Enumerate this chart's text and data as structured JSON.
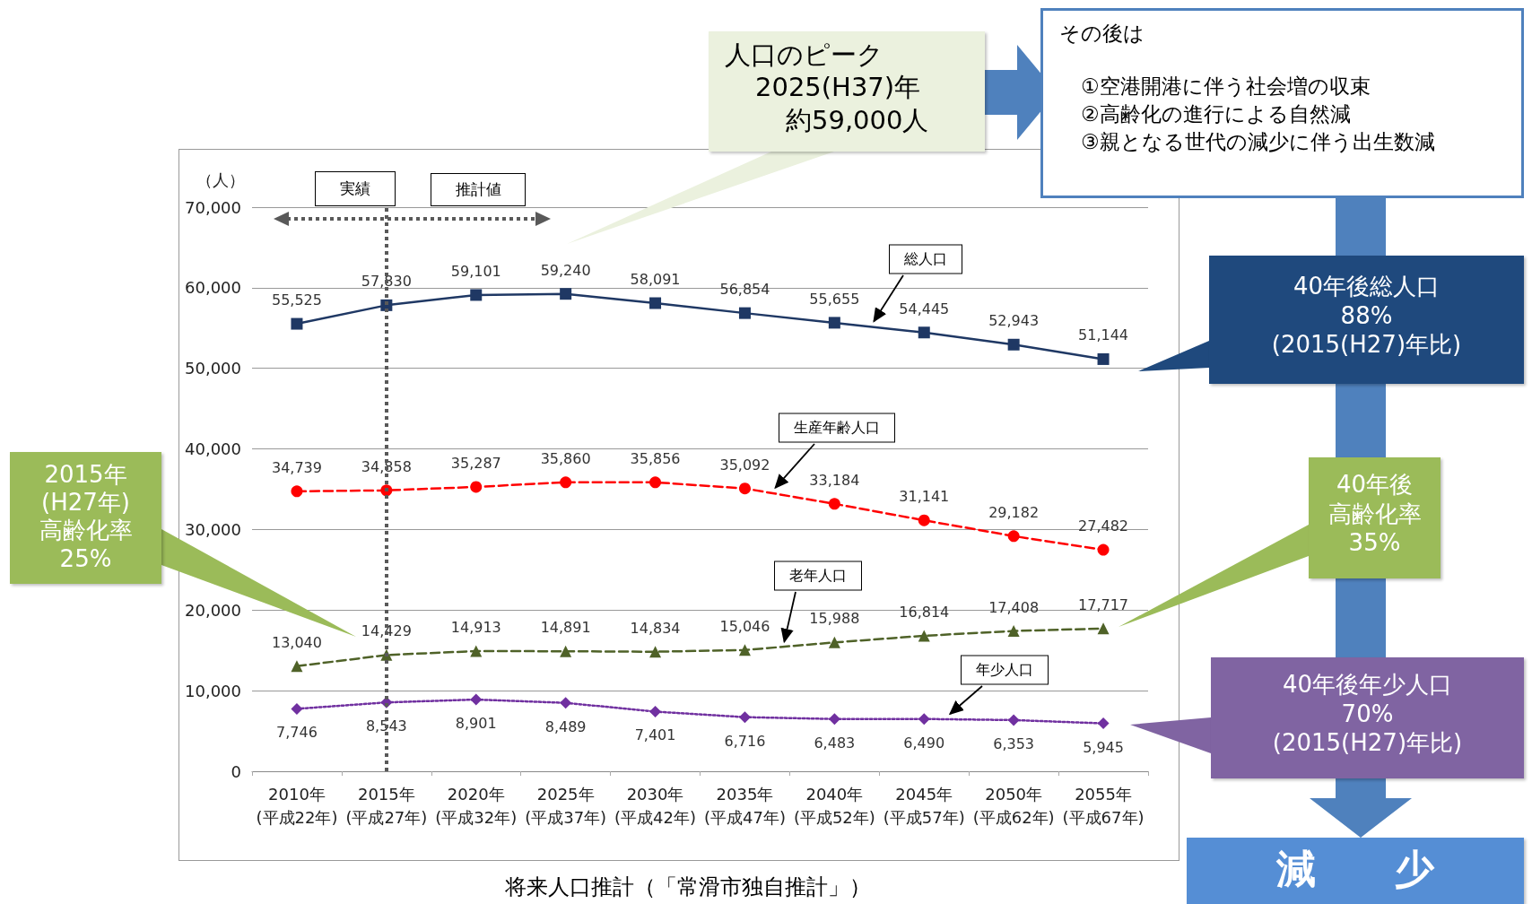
{
  "chart_data": {
    "type": "line",
    "title": "将来人口推計（「常滑市独自推計」）",
    "ylabel": "（人）",
    "categories": [
      "2010年\n(平成22年)",
      "2015年\n(平成27年)",
      "2020年\n(平成32年)",
      "2025年\n(平成37年)",
      "2030年\n(平成42年)",
      "2035年\n(平成47年)",
      "2040年\n(平成52年)",
      "2045年\n(平成57年)",
      "2050年\n(平成62年)",
      "2055年\n(平成67年)"
    ],
    "series": [
      {
        "name": "総人口",
        "color": "#1f3864",
        "marker": "square",
        "line_style": "solid",
        "values": [
          55525,
          57830,
          59101,
          59240,
          58091,
          56854,
          55655,
          54445,
          52943,
          51144
        ],
        "value_labels": [
          "55,525",
          "57,830",
          "59,101",
          "59,240",
          "58,091",
          "56,854",
          "55,655",
          "54,445",
          "52,943",
          "51,144"
        ]
      },
      {
        "name": "生産年齢人口",
        "color": "#ff0000",
        "marker": "circle",
        "line_style": "dashed",
        "values": [
          34739,
          34858,
          35287,
          35860,
          35856,
          35092,
          33184,
          31141,
          29182,
          27482
        ],
        "value_labels": [
          "34,739",
          "34,858",
          "35,287",
          "35,860",
          "35,856",
          "35,092",
          "33,184",
          "31,141",
          "29,182",
          "27,482"
        ]
      },
      {
        "name": "老年人口",
        "color": "#4f6228",
        "marker": "triangle",
        "line_style": "dashed",
        "values": [
          13040,
          14429,
          14913,
          14891,
          14834,
          15046,
          15988,
          16814,
          17408,
          17717
        ],
        "value_labels": [
          "13,040",
          "14,429",
          "14,913",
          "14,891",
          "14,834",
          "15,046",
          "15,988",
          "16,814",
          "17,408",
          "17,717"
        ]
      },
      {
        "name": "年少人口",
        "color": "#7030a0",
        "marker": "diamond",
        "line_style": "dotted",
        "values": [
          7746,
          8543,
          8901,
          8489,
          7401,
          6716,
          6483,
          6490,
          6353,
          5945
        ],
        "value_labels": [
          "7,746",
          "8,543",
          "8,901",
          "8,489",
          "7,401",
          "6,716",
          "6,483",
          "6,490",
          "6,353",
          "5,945"
        ]
      }
    ],
    "ylim": [
      0,
      70000
    ],
    "yticks": [
      {
        "value": 0,
        "label": "0"
      },
      {
        "value": 10000,
        "label": "10,000"
      },
      {
        "value": 20000,
        "label": "20,000"
      },
      {
        "value": 30000,
        "label": "30,000"
      },
      {
        "value": 40000,
        "label": "40,000"
      },
      {
        "value": 50000,
        "label": "50,000"
      },
      {
        "value": 60000,
        "label": "60,000"
      },
      {
        "value": 70000,
        "label": "70,000"
      }
    ],
    "grid": "y",
    "ref_lines": [
      {
        "axis": "x",
        "value": "2015年\n(平成27年)",
        "label": null,
        "color": "#595959",
        "line_style": "dotted"
      }
    ],
    "annotations": [
      "人口のピーク2025(H37)年約59,000人",
      "その後は①空港開港に伴う社会増の収束②高齢化の進行による自然減③親となる世代の減少に伴う出生数減",
      "40年後総人口88%(2015(H27)年比)",
      "2015年(H27年)高齢化率25%",
      "40年後高齢化率35%",
      "40年後年少人口70%(2015(H27)年比)",
      "減　　少",
      "実績",
      "推計値"
    ]
  }
}
